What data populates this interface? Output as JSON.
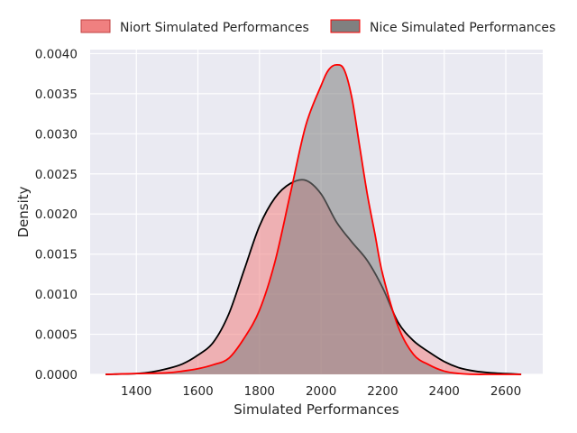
{
  "chart_data": {
    "type": "area",
    "title": "",
    "xlabel": "Simulated Performances",
    "ylabel": "Density",
    "xlim": [
      1250,
      2720
    ],
    "ylim": [
      0,
      0.00405
    ],
    "xticks": [
      1400,
      1600,
      1800,
      2000,
      2200,
      2400,
      2600
    ],
    "xtick_labels": [
      "1400",
      "1600",
      "1800",
      "2000",
      "2200",
      "2400",
      "2600"
    ],
    "yticks": [
      0,
      0.0005,
      0.001,
      0.0015,
      0.002,
      0.0025,
      0.003,
      0.0035,
      0.004
    ],
    "ytick_labels": [
      "0.0000",
      "0.0005",
      "0.0010",
      "0.0015",
      "0.0020",
      "0.0025",
      "0.0030",
      "0.0035",
      "0.0040"
    ],
    "grid": true,
    "legend_position": "top, above plot, horizontal",
    "background": "#eaeaf2",
    "series": [
      {
        "name": "Niort Simulated Performances",
        "fill": "#f08080",
        "line": "#000000",
        "fill_opacity": 0.55,
        "x": [
          1300,
          1400,
          1450,
          1500,
          1550,
          1600,
          1650,
          1700,
          1750,
          1800,
          1850,
          1900,
          1950,
          2000,
          2050,
          2100,
          2150,
          2200,
          2250,
          2300,
          2350,
          2400,
          2450,
          2500,
          2550,
          2600,
          2650
        ],
        "y": [
          0.0,
          1e-05,
          3e-05,
          7e-05,
          0.00013,
          0.00024,
          0.0004,
          0.00075,
          0.0013,
          0.00185,
          0.0022,
          0.00238,
          0.00242,
          0.00225,
          0.0019,
          0.00165,
          0.00142,
          0.00108,
          0.00065,
          0.00042,
          0.00028,
          0.00016,
          8e-05,
          4e-05,
          2e-05,
          1e-05,
          0.0
        ]
      },
      {
        "name": "Nice Simulated Performances",
        "fill": "#808080",
        "line": "#ff0000",
        "fill_opacity": 0.55,
        "x": [
          1300,
          1400,
          1500,
          1550,
          1600,
          1650,
          1700,
          1750,
          1800,
          1850,
          1900,
          1950,
          2000,
          2025,
          2050,
          2075,
          2100,
          2125,
          2150,
          2175,
          2200,
          2250,
          2300,
          2350,
          2400,
          2450,
          2500,
          2550,
          2600,
          2650
        ],
        "y": [
          0.0,
          1e-05,
          2e-05,
          4e-05,
          7e-05,
          0.00012,
          0.0002,
          0.00045,
          0.0008,
          0.0014,
          0.00225,
          0.0031,
          0.0036,
          0.0038,
          0.00386,
          0.0038,
          0.00345,
          0.00285,
          0.00225,
          0.00175,
          0.00125,
          0.0006,
          0.00025,
          0.00012,
          4e-05,
          1e-05,
          0.0,
          0.0,
          0.0,
          0.0
        ]
      }
    ]
  }
}
